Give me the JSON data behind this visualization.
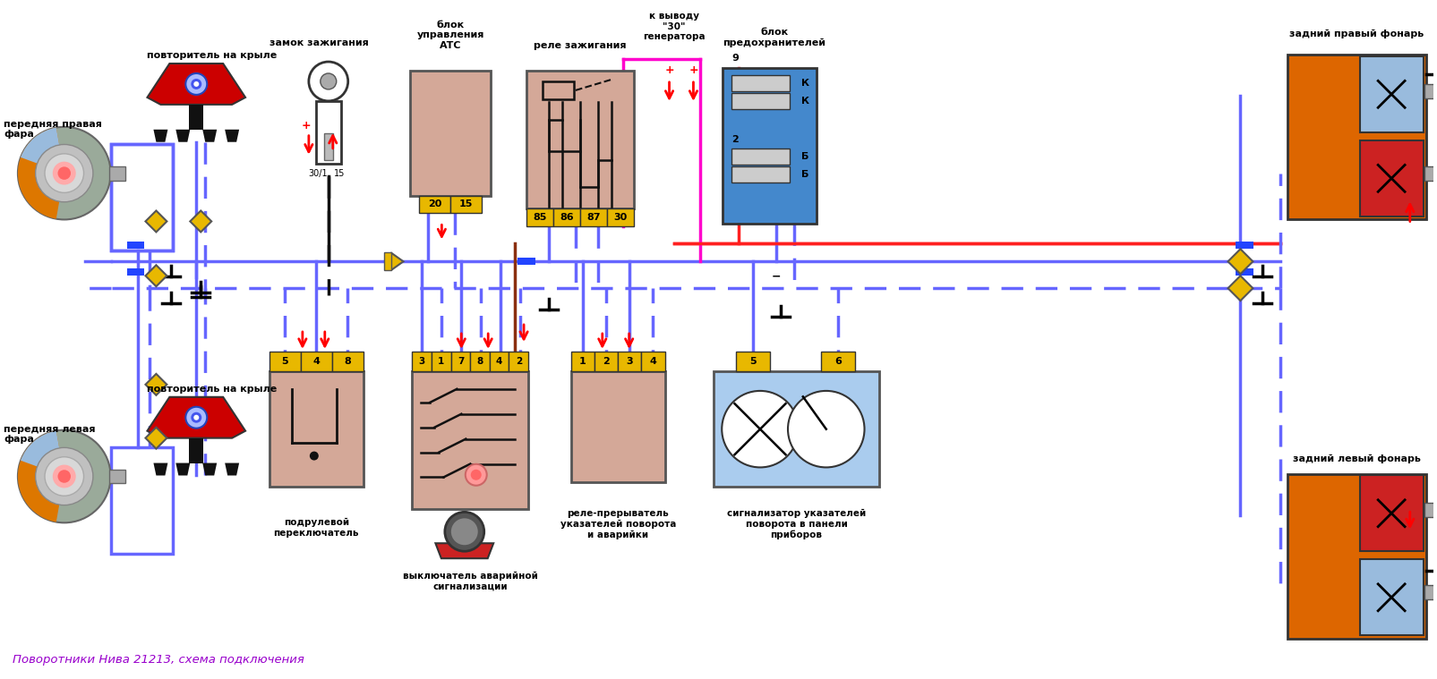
{
  "title": "Поворотники Нива 21213, схема подключения",
  "title_color": "#9900cc",
  "bg_color": "#ffffff",
  "figsize": [
    16.06,
    7.59
  ],
  "dpi": 100,
  "labels": {
    "front_right_headlight": "передняя правая\nфара",
    "front_left_headlight": "передняя левая\nфара",
    "repeater_right": "повторитель на крыле",
    "repeater_left": "повторитель на крыле",
    "ignition_lock": "замок зажигания",
    "atc_block": "блок\nуправления\nАТС",
    "ignition_relay": "реле зажигания",
    "generator_output": "к выводу\n\"30\"\nгенератора",
    "fuse_block": "блок\nпредохранителей",
    "rear_right_lamp": "задний правый фонарь",
    "rear_left_lamp": "задний левый фонарь",
    "steering_switch": "подрулевой\nпереключатель",
    "hazard_switch": "выключатель аварийной\nсигнализации",
    "turn_relay": "реле-прерыватель\nуказателей поворота\nи аварийки",
    "turn_indicator": "сигнализатор указателей\nповорота в панели\nприборов"
  },
  "colors": {
    "red_wire": "#ff2020",
    "blue_solid": "#6666ff",
    "blue_dashed": "#6666ff",
    "pink_wire": "#ff00cc",
    "dark_wire": "#111111",
    "brown_wire": "#8B3010",
    "yellow_conn": "#e8b800",
    "blue_block": "#4488cc",
    "beige_block": "#d4a898",
    "orange_color": "#dd6600",
    "red_color": "#cc2222",
    "blue_color": "#99bbdd",
    "gray_color": "#888888",
    "repeater_red": "#cc0000",
    "repeater_blue": "#3344cc"
  },
  "wire_lw": 2.5,
  "connector_color": "#e8b800"
}
